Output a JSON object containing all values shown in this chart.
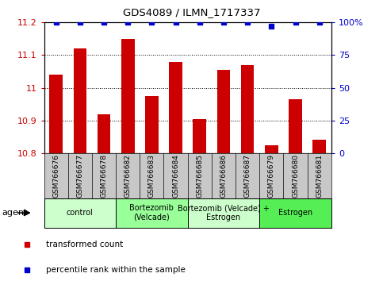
{
  "title": "GDS4089 / ILMN_1717337",
  "samples": [
    "GSM766676",
    "GSM766677",
    "GSM766678",
    "GSM766682",
    "GSM766683",
    "GSM766684",
    "GSM766685",
    "GSM766686",
    "GSM766687",
    "GSM766679",
    "GSM766680",
    "GSM766681"
  ],
  "bar_values": [
    11.04,
    11.12,
    10.92,
    11.15,
    10.975,
    11.08,
    10.905,
    11.055,
    11.07,
    10.825,
    10.965,
    10.84
  ],
  "percentile_values": [
    100,
    100,
    100,
    100,
    100,
    100,
    100,
    100,
    100,
    97,
    100,
    100
  ],
  "bar_color": "#cc0000",
  "percentile_color": "#0000cc",
  "ylim_left": [
    10.8,
    11.2
  ],
  "ylim_right": [
    0,
    100
  ],
  "yticks_left": [
    10.8,
    10.9,
    11.0,
    11.1,
    11.2
  ],
  "yticks_right": [
    0,
    25,
    50,
    75,
    100
  ],
  "ytick_labels_left": [
    "10.8",
    "10.9",
    "11",
    "11.1",
    "11.2"
  ],
  "ytick_labels_right": [
    "0",
    "25",
    "50",
    "75",
    "100%"
  ],
  "groups": [
    {
      "label": "control",
      "start": 0,
      "end": 3,
      "color": "#ccffcc"
    },
    {
      "label": "Bortezomib\n(Velcade)",
      "start": 3,
      "end": 6,
      "color": "#99ff99"
    },
    {
      "label": "Bortezomib (Velcade) +\nEstrogen",
      "start": 6,
      "end": 9,
      "color": "#ccffcc"
    },
    {
      "label": "Estrogen",
      "start": 9,
      "end": 12,
      "color": "#55ee55"
    }
  ],
  "legend_items": [
    {
      "label": "transformed count",
      "color": "#cc0000"
    },
    {
      "label": "percentile rank within the sample",
      "color": "#0000cc"
    }
  ],
  "agent_label": "agent",
  "tick_area_color": "#c8c8c8",
  "bar_width": 0.55
}
